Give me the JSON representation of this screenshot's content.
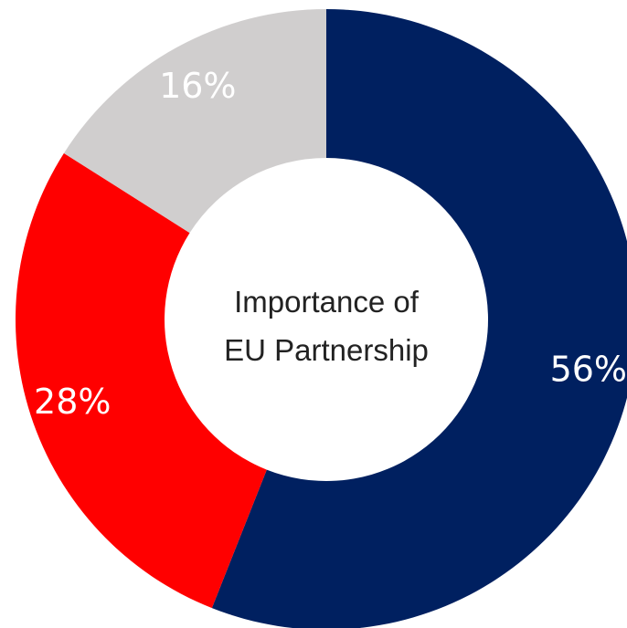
{
  "chart_data": {
    "type": "pie",
    "variant": "donut",
    "title": "",
    "center_label": [
      "Importance of",
      "EU Partnership"
    ],
    "slices": [
      {
        "value": 56,
        "label": "56%",
        "color": "#002060"
      },
      {
        "value": 28,
        "label": "28%",
        "color": "#ff0000"
      },
      {
        "value": 16,
        "label": "16%",
        "color": "#d0cece"
      }
    ],
    "start": "top",
    "direction": "clockwise",
    "legend": "none"
  }
}
